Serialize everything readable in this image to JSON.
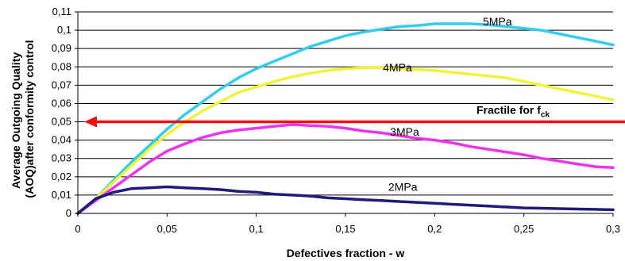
{
  "chart_data": {
    "type": "line",
    "xlabel": "Defectives fraction - w",
    "ylabel_line1": "Average Outgoing Quality",
    "ylabel_line2": "(AOQ)after conformity control",
    "xlim": [
      0,
      0.3
    ],
    "ylim": [
      0,
      0.11
    ],
    "x_ticks": [
      0,
      0.05,
      0.1,
      0.15,
      0.2,
      0.25,
      0.3
    ],
    "x_tick_labels": [
      "0",
      "0,05",
      "0,1",
      "0,15",
      "0,2",
      "0,25",
      "0,3"
    ],
    "y_ticks": [
      0,
      0.01,
      0.02,
      0.03,
      0.04,
      0.05,
      0.06,
      0.07,
      0.08,
      0.09,
      0.1,
      0.11
    ],
    "y_tick_labels": [
      "0",
      "0,01",
      "0,02",
      "0,03",
      "0,04",
      "0,05",
      "0,06",
      "0,07",
      "0,08",
      "0,09",
      "0,1",
      "0,11"
    ],
    "grid": "horizontal",
    "series": [
      {
        "name": "5MPa",
        "color": "#33ccee",
        "label_at": [
          0.227,
          0.1027
        ],
        "points": [
          [
            0,
            0
          ],
          [
            0.01,
            0.008
          ],
          [
            0.02,
            0.018
          ],
          [
            0.03,
            0.028
          ],
          [
            0.04,
            0.037
          ],
          [
            0.05,
            0.046
          ],
          [
            0.06,
            0.054
          ],
          [
            0.07,
            0.061
          ],
          [
            0.08,
            0.068
          ],
          [
            0.09,
            0.074
          ],
          [
            0.1,
            0.079
          ],
          [
            0.11,
            0.083
          ],
          [
            0.12,
            0.087
          ],
          [
            0.13,
            0.091
          ],
          [
            0.14,
            0.094
          ],
          [
            0.15,
            0.097
          ],
          [
            0.16,
            0.099
          ],
          [
            0.17,
            0.1005
          ],
          [
            0.18,
            0.102
          ],
          [
            0.19,
            0.1025
          ],
          [
            0.2,
            0.1035
          ],
          [
            0.21,
            0.1035
          ],
          [
            0.22,
            0.1035
          ],
          [
            0.23,
            0.103
          ],
          [
            0.24,
            0.102
          ],
          [
            0.25,
            0.101
          ],
          [
            0.26,
            0.1
          ],
          [
            0.27,
            0.098
          ],
          [
            0.28,
            0.096
          ],
          [
            0.29,
            0.094
          ],
          [
            0.3,
            0.092
          ]
        ]
      },
      {
        "name": "4MPa",
        "color": "#f2f23a",
        "label_at": [
          0.171,
          0.0775
        ],
        "points": [
          [
            0,
            0
          ],
          [
            0.01,
            0.008
          ],
          [
            0.02,
            0.017
          ],
          [
            0.03,
            0.026
          ],
          [
            0.04,
            0.035
          ],
          [
            0.05,
            0.043
          ],
          [
            0.06,
            0.05
          ],
          [
            0.07,
            0.056
          ],
          [
            0.08,
            0.061
          ],
          [
            0.09,
            0.066
          ],
          [
            0.1,
            0.069
          ],
          [
            0.11,
            0.072
          ],
          [
            0.12,
            0.0745
          ],
          [
            0.13,
            0.0765
          ],
          [
            0.14,
            0.078
          ],
          [
            0.15,
            0.079
          ],
          [
            0.16,
            0.0795
          ],
          [
            0.17,
            0.0795
          ],
          [
            0.18,
            0.079
          ],
          [
            0.19,
            0.0785
          ],
          [
            0.2,
            0.078
          ],
          [
            0.21,
            0.077
          ],
          [
            0.22,
            0.076
          ],
          [
            0.23,
            0.075
          ],
          [
            0.24,
            0.074
          ],
          [
            0.25,
            0.072
          ],
          [
            0.26,
            0.07
          ],
          [
            0.27,
            0.068
          ],
          [
            0.28,
            0.066
          ],
          [
            0.29,
            0.064
          ],
          [
            0.3,
            0.062
          ]
        ]
      },
      {
        "name": "3MPa",
        "color": "#ee33ee",
        "label_at": [
          0.175,
          0.0425
        ],
        "points": [
          [
            0,
            0
          ],
          [
            0.01,
            0.007
          ],
          [
            0.02,
            0.014
          ],
          [
            0.03,
            0.021
          ],
          [
            0.04,
            0.028
          ],
          [
            0.05,
            0.034
          ],
          [
            0.06,
            0.038
          ],
          [
            0.07,
            0.0415
          ],
          [
            0.08,
            0.044
          ],
          [
            0.09,
            0.0455
          ],
          [
            0.1,
            0.0465
          ],
          [
            0.11,
            0.0475
          ],
          [
            0.12,
            0.0485
          ],
          [
            0.13,
            0.048
          ],
          [
            0.14,
            0.0475
          ],
          [
            0.15,
            0.0465
          ],
          [
            0.16,
            0.045
          ],
          [
            0.17,
            0.044
          ],
          [
            0.18,
            0.0425
          ],
          [
            0.19,
            0.041
          ],
          [
            0.2,
            0.04
          ],
          [
            0.21,
            0.0385
          ],
          [
            0.22,
            0.0365
          ],
          [
            0.23,
            0.035
          ],
          [
            0.24,
            0.0335
          ],
          [
            0.25,
            0.032
          ],
          [
            0.26,
            0.03
          ],
          [
            0.27,
            0.0285
          ],
          [
            0.28,
            0.027
          ],
          [
            0.29,
            0.0255
          ],
          [
            0.3,
            0.025
          ]
        ]
      },
      {
        "name": "2MPa",
        "color": "#1c1c7a",
        "label_at": [
          0.174,
          0.0123
        ],
        "points": [
          [
            0,
            0
          ],
          [
            0.005,
            0.004
          ],
          [
            0.01,
            0.008
          ],
          [
            0.02,
            0.0115
          ],
          [
            0.03,
            0.0135
          ],
          [
            0.04,
            0.014
          ],
          [
            0.05,
            0.0145
          ],
          [
            0.06,
            0.014
          ],
          [
            0.07,
            0.0135
          ],
          [
            0.08,
            0.013
          ],
          [
            0.09,
            0.012
          ],
          [
            0.1,
            0.0115
          ],
          [
            0.11,
            0.0105
          ],
          [
            0.12,
            0.01
          ],
          [
            0.13,
            0.0095
          ],
          [
            0.14,
            0.0085
          ],
          [
            0.15,
            0.008
          ],
          [
            0.16,
            0.0075
          ],
          [
            0.17,
            0.007
          ],
          [
            0.18,
            0.0065
          ],
          [
            0.19,
            0.006
          ],
          [
            0.2,
            0.0055
          ],
          [
            0.21,
            0.005
          ],
          [
            0.22,
            0.0045
          ],
          [
            0.23,
            0.004
          ],
          [
            0.24,
            0.0035
          ],
          [
            0.25,
            0.003
          ],
          [
            0.26,
            0.0028
          ],
          [
            0.27,
            0.0026
          ],
          [
            0.28,
            0.0024
          ],
          [
            0.29,
            0.0022
          ],
          [
            0.3,
            0.002
          ]
        ]
      }
    ],
    "reference_line": {
      "y": 0.05,
      "color": "#ee1111",
      "direction": "left-arrow",
      "label": "Fractile for f",
      "label_subscript": "ck"
    }
  }
}
